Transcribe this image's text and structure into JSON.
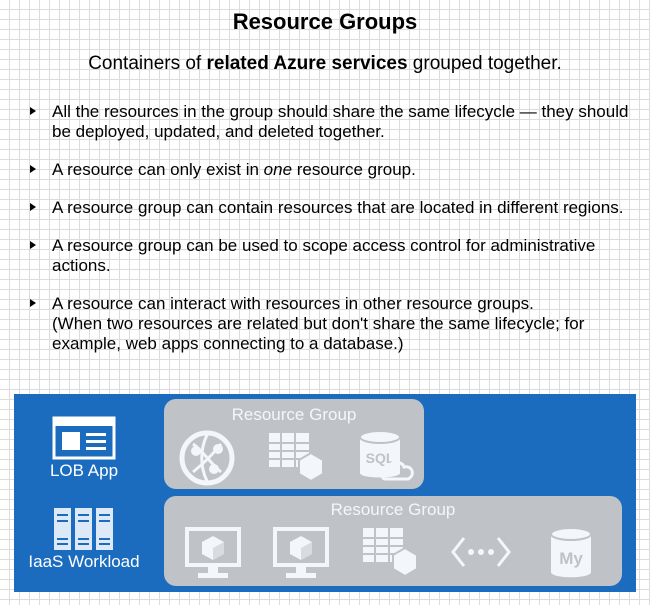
{
  "title": "Resource Groups",
  "subtitle": {
    "before": "Containers of ",
    "bold": "related Azure services",
    "after": " grouped together."
  },
  "bullets": {
    "b1": "All the resources in the group should share the same lifecycle — they should be deployed, updated, and deleted together.",
    "b2_before": "A resource can only exist in ",
    "b2_em": "one",
    "b2_after": " resource group.",
    "b3": "A resource group can contain resources that are located in different regions.",
    "b4": "A resource group can be used to scope access control for administrative actions.",
    "b5_line1": "A resource can interact with resources in other resource groups.",
    "b5_line2": "(When two resources are related but don't share the same lifecycle; for example, web apps connecting to a database.)"
  },
  "diagram": {
    "lob_label": "LOB App",
    "iaas_label": "IaaS Workload",
    "rg1_label": "Resource Group",
    "rg2_label": "Resource Group",
    "sql_text": "SQL",
    "my_text": "My",
    "colors": {
      "panel": "#1b6cbf",
      "group": "#c8c8c8",
      "icon": "#ffffff"
    }
  }
}
